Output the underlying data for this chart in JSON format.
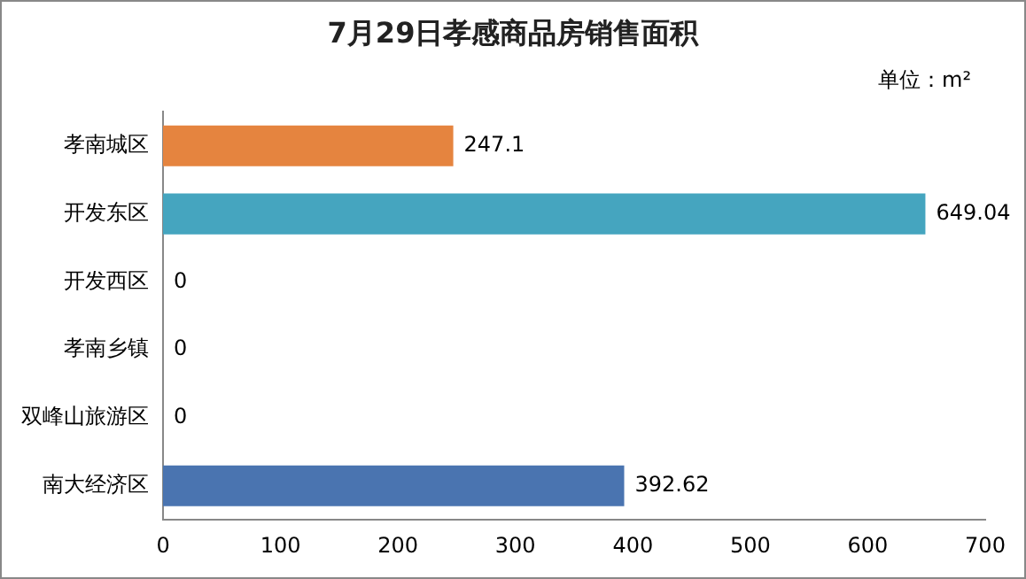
{
  "chart_data": {
    "type": "bar",
    "orientation": "horizontal",
    "title": "7月29日孝感商品房销售面积",
    "annotations": [
      "单位：m²"
    ],
    "categories": [
      "孝南城区",
      "开发东区",
      "开发西区",
      "孝南乡镇",
      "双峰山旅游区",
      "南大经济区"
    ],
    "values": [
      247.1,
      649.04,
      0,
      0,
      0,
      392.62
    ],
    "colors": [
      "#e5843f",
      "#45a5bf",
      "#4f81bd",
      "#4f81bd",
      "#4f81bd",
      "#4a74b0"
    ],
    "xlim": [
      0,
      700
    ],
    "xticks": [
      0,
      100,
      200,
      300,
      400,
      500,
      600,
      700
    ],
    "grid": false,
    "legend": false,
    "data_labels": true
  }
}
